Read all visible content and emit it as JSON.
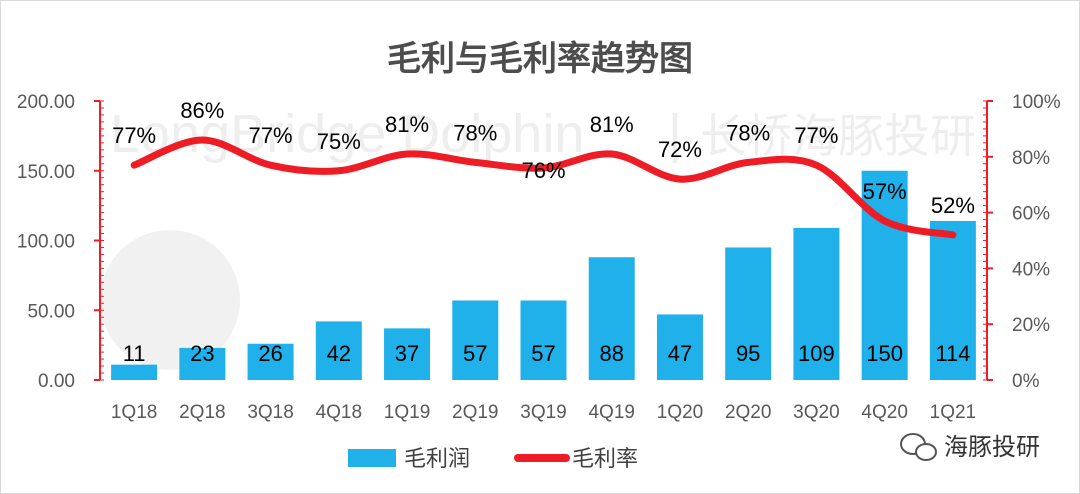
{
  "chart_data": {
    "type": "bar",
    "title": "毛利与毛利率趋势图",
    "categories": [
      "1Q18",
      "2Q18",
      "3Q18",
      "4Q18",
      "1Q19",
      "2Q19",
      "3Q19",
      "4Q19",
      "1Q20",
      "2Q20",
      "3Q20",
      "4Q20",
      "1Q21"
    ],
    "series": [
      {
        "name": "毛利润",
        "type": "bar",
        "axis": "left",
        "color": "#20b0ea",
        "values": [
          11,
          23,
          26,
          42,
          37,
          57,
          57,
          88,
          47,
          95,
          109,
          150,
          114
        ]
      },
      {
        "name": "毛利率",
        "type": "line",
        "axis": "right",
        "color": "#ee1c25",
        "values": [
          77,
          86,
          77,
          75,
          81,
          78,
          76,
          81,
          72,
          78,
          77,
          57,
          52
        ]
      }
    ],
    "y_left": {
      "min": 0,
      "max": 200,
      "ticks": [
        "0.00",
        "50.00",
        "100.00",
        "150.00",
        "200.00"
      ]
    },
    "y_right": {
      "min": 0,
      "max": 100,
      "ticks": [
        "0%",
        "20%",
        "40%",
        "60%",
        "80%",
        "100%"
      ]
    },
    "legend_position": "bottom",
    "grid": false
  },
  "watermark": {
    "text": "LongBridge Dolphin",
    "separator": "|",
    "cn": "长桥海豚投研"
  },
  "brand_badge": {
    "text": "海豚投研"
  },
  "colors": {
    "bar": "#20b0ea",
    "line": "#ee1c25",
    "axis": "#ee1c25"
  }
}
